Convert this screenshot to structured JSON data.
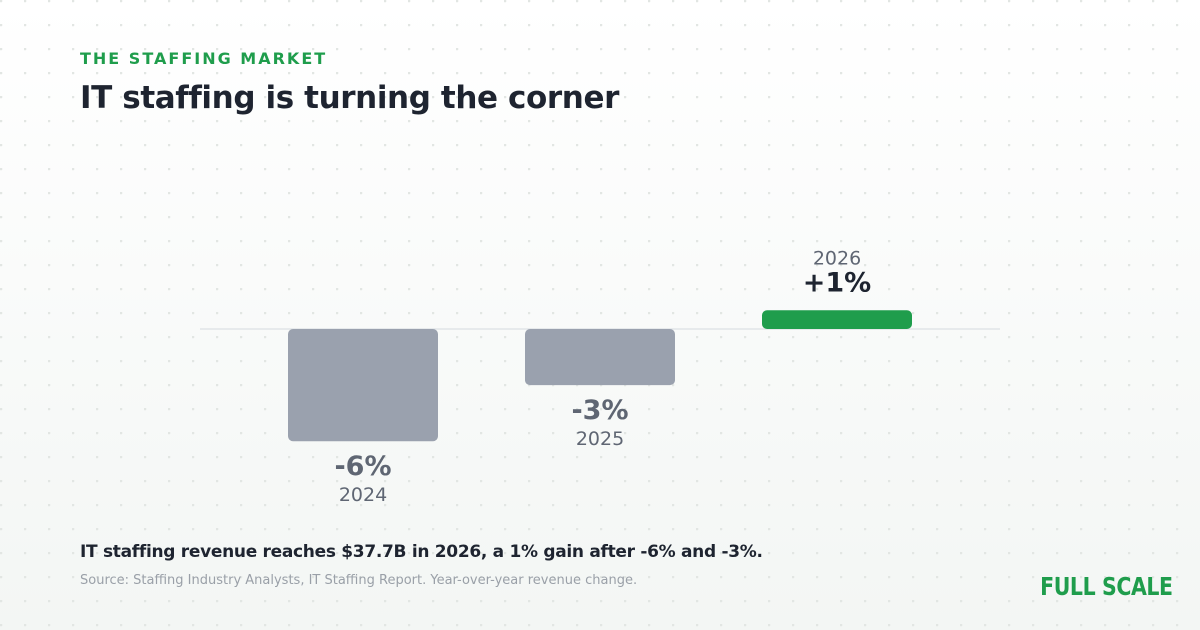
{
  "header": {
    "eyebrow": "THE STAFFING MARKET",
    "title": "IT staffing is turning the corner"
  },
  "chart_data": {
    "type": "bar",
    "categories": [
      "2024",
      "2025",
      "2026"
    ],
    "values": [
      -6,
      -3,
      1
    ],
    "value_labels": [
      "-6%",
      "-3%",
      "+1%"
    ],
    "unit": "%",
    "ylim": [
      -6,
      1
    ],
    "baseline": 0,
    "grid": false,
    "legend": "none",
    "colors": {
      "negative": "#9aa1ae",
      "positive": "#1f9d4c",
      "baseline": "#e1e4e8",
      "label": "#5f6673",
      "value_negative": "#5f6673",
      "value_positive": "#1e2430"
    }
  },
  "footer": {
    "caption": "IT staffing revenue reaches $37.7B in 2026, a 1% gain after -6% and -3%.",
    "source": "Source: Staffing Industry Analysts, IT Staffing Report. Year-over-year revenue change.",
    "logo_text": "FULL SCALE"
  }
}
